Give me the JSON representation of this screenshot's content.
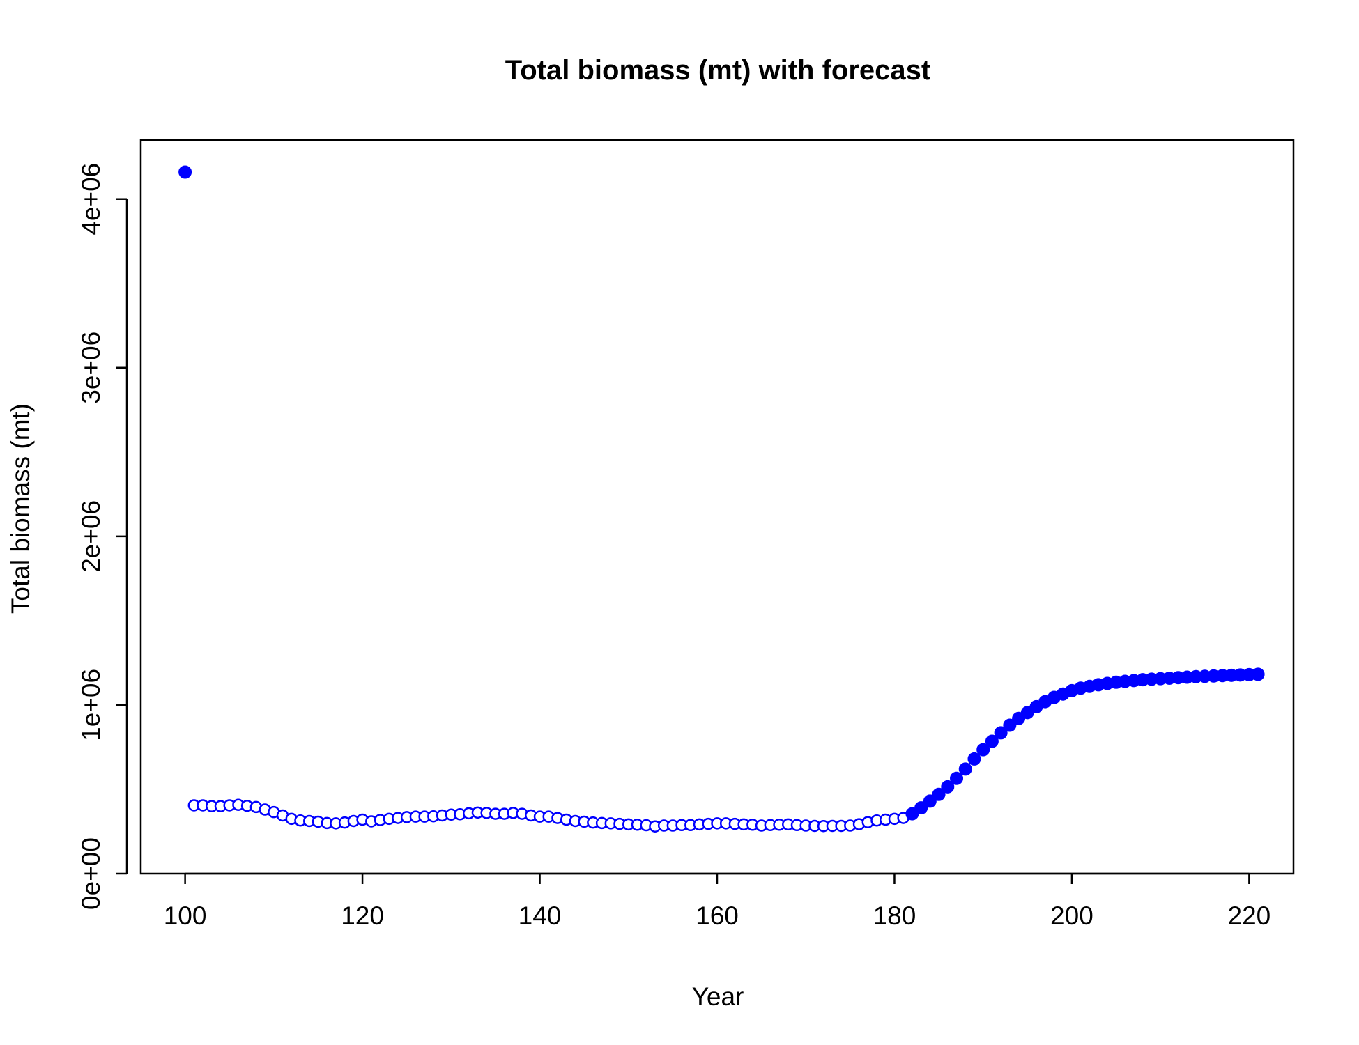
{
  "chart_data": {
    "type": "scatter",
    "title": "Total biomass (mt) with forecast",
    "xlabel": "Year",
    "ylabel": "Total biomass (mt)",
    "xlim": [
      95,
      225
    ],
    "ylim": [
      0,
      4350000
    ],
    "x_ticks": [
      100,
      120,
      140,
      160,
      180,
      200,
      220
    ],
    "x_tick_labels": [
      "100",
      "120",
      "140",
      "160",
      "180",
      "200",
      "220"
    ],
    "y_ticks": [
      0,
      1000000,
      2000000,
      3000000,
      4000000
    ],
    "y_tick_labels": [
      "0e+00",
      "1e+06",
      "2e+06",
      "3e+06",
      "4e+06"
    ],
    "grid": false,
    "legend": "none",
    "colors": {
      "points": "#0000ff",
      "axes": "#000000",
      "background": "#ffffff"
    },
    "series": [
      {
        "marker": "filled",
        "x": [
          100
        ],
        "y": [
          4160000
        ]
      },
      {
        "marker": "open",
        "x": [
          101,
          102,
          103,
          104,
          105,
          106,
          107,
          108,
          109,
          110,
          111,
          112,
          113,
          114,
          115,
          116,
          117,
          118,
          119,
          120,
          121,
          122,
          123,
          124,
          125,
          126,
          127,
          128,
          129,
          130,
          131,
          132,
          133,
          134,
          135,
          136,
          137,
          138,
          139,
          140,
          141,
          142,
          143,
          144,
          145,
          146,
          147,
          148,
          149,
          150,
          151,
          152,
          153,
          154,
          155,
          156,
          157,
          158,
          159,
          160,
          161,
          162,
          163,
          164,
          165,
          166,
          167,
          168,
          169,
          170,
          171,
          172,
          173,
          174,
          175,
          176,
          177,
          178,
          179,
          180,
          181
        ],
        "y": [
          405000,
          405000,
          400000,
          400000,
          405000,
          408000,
          402000,
          395000,
          380000,
          365000,
          345000,
          325000,
          315000,
          312000,
          308000,
          300000,
          298000,
          303000,
          312000,
          320000,
          310000,
          318000,
          325000,
          330000,
          335000,
          338000,
          338000,
          340000,
          345000,
          350000,
          352000,
          358000,
          362000,
          360000,
          355000,
          355000,
          360000,
          355000,
          345000,
          338000,
          338000,
          330000,
          320000,
          312000,
          308000,
          303000,
          300000,
          298000,
          295000,
          292000,
          290000,
          287000,
          280000,
          285000,
          285000,
          288000,
          288000,
          292000,
          295000,
          298000,
          298000,
          295000,
          292000,
          290000,
          285000,
          288000,
          290000,
          292000,
          288000,
          285000,
          283000,
          282000,
          283000,
          283000,
          285000,
          293000,
          305000,
          315000,
          320000,
          325000,
          330000
        ]
      },
      {
        "marker": "filled",
        "x": [
          182,
          183,
          184,
          185,
          186,
          187,
          188,
          189,
          190,
          191,
          192,
          193,
          194,
          195,
          196,
          197,
          198,
          199,
          200,
          201,
          202,
          203,
          204,
          205,
          206,
          207,
          208,
          209,
          210,
          211,
          212,
          213,
          214,
          215,
          216,
          217,
          218,
          219,
          220,
          221
        ],
        "y": [
          355000,
          390000,
          430000,
          470000,
          515000,
          565000,
          620000,
          680000,
          735000,
          785000,
          835000,
          880000,
          920000,
          955000,
          990000,
          1020000,
          1045000,
          1065000,
          1085000,
          1100000,
          1110000,
          1120000,
          1128000,
          1135000,
          1140000,
          1145000,
          1150000,
          1153000,
          1156000,
          1159000,
          1162000,
          1165000,
          1168000,
          1170000,
          1172000,
          1174000,
          1176000,
          1178000,
          1180000,
          1182000
        ]
      }
    ]
  }
}
